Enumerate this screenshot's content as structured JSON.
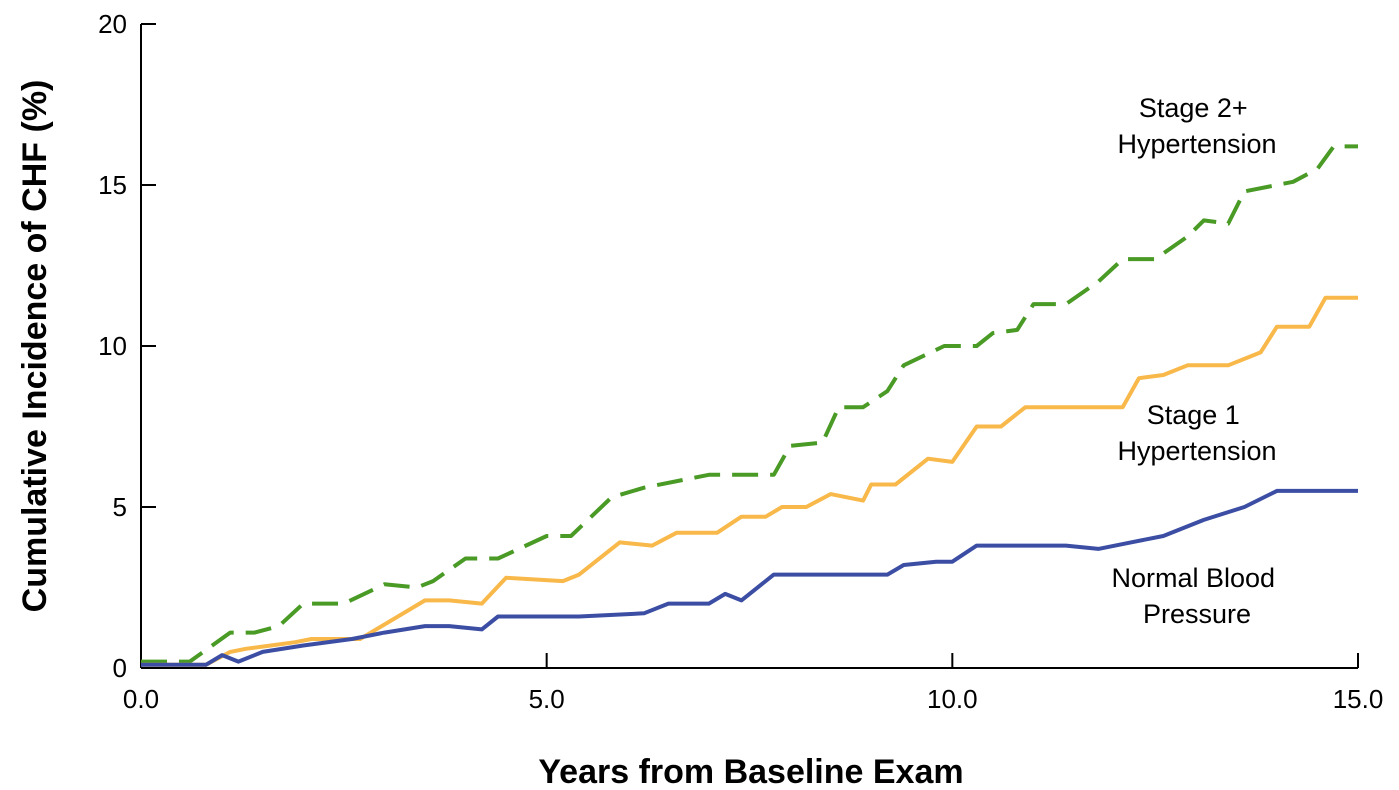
{
  "chart_data": {
    "type": "line",
    "title": "",
    "xlabel": "Years from Baseline Exam",
    "ylabel": "Cumulative Incidence of CHF (%)",
    "xlim": [
      0,
      15
    ],
    "ylim": [
      0,
      20
    ],
    "x_ticks": [
      0,
      5,
      10,
      15
    ],
    "x_tick_labels": [
      "0.0",
      "5.0",
      "10.0",
      "15.0"
    ],
    "y_ticks": [
      0,
      5,
      10,
      15,
      20
    ],
    "y_tick_labels": [
      "0",
      "5",
      "10",
      "15",
      "20"
    ],
    "grid": false,
    "legend": "inline labels at right",
    "series": [
      {
        "name": "Stage 2+ Hypertension",
        "label_lines": [
          "Stage 2+",
          "Hypertension"
        ],
        "color": "#4a9a26",
        "dash": "dashed",
        "points": [
          [
            0,
            0.2
          ],
          [
            0.6,
            0.2
          ],
          [
            1.1,
            1.1
          ],
          [
            1.4,
            1.1
          ],
          [
            1.7,
            1.3
          ],
          [
            2.0,
            2.0
          ],
          [
            2.5,
            2.0
          ],
          [
            3.0,
            2.6
          ],
          [
            3.4,
            2.5
          ],
          [
            3.6,
            2.7
          ],
          [
            4.0,
            3.4
          ],
          [
            4.4,
            3.4
          ],
          [
            5.0,
            4.1
          ],
          [
            5.3,
            4.1
          ],
          [
            5.8,
            5.3
          ],
          [
            6.2,
            5.6
          ],
          [
            7.0,
            6.0
          ],
          [
            7.4,
            6.0
          ],
          [
            7.8,
            6.0
          ],
          [
            8.0,
            6.9
          ],
          [
            8.4,
            7.0
          ],
          [
            8.6,
            8.1
          ],
          [
            8.9,
            8.1
          ],
          [
            9.2,
            8.6
          ],
          [
            9.4,
            9.4
          ],
          [
            9.9,
            10.0
          ],
          [
            10.3,
            10.0
          ],
          [
            10.5,
            10.4
          ],
          [
            10.8,
            10.5
          ],
          [
            11.0,
            11.3
          ],
          [
            11.4,
            11.3
          ],
          [
            11.8,
            12.0
          ],
          [
            12.1,
            12.7
          ],
          [
            12.5,
            12.7
          ],
          [
            12.9,
            13.4
          ],
          [
            13.1,
            13.9
          ],
          [
            13.4,
            13.8
          ],
          [
            13.6,
            14.8
          ],
          [
            14.2,
            15.1
          ],
          [
            14.5,
            15.5
          ],
          [
            14.7,
            16.2
          ],
          [
            15.0,
            16.2
          ]
        ]
      },
      {
        "name": "Stage 1 Hypertension",
        "label_lines": [
          "Stage 1",
          "Hypertension"
        ],
        "color": "#f8b84a",
        "dash": "solid",
        "points": [
          [
            0,
            0.1
          ],
          [
            0.8,
            0.1
          ],
          [
            1.1,
            0.5
          ],
          [
            1.3,
            0.6
          ],
          [
            1.6,
            0.7
          ],
          [
            1.9,
            0.8
          ],
          [
            2.1,
            0.9
          ],
          [
            2.7,
            0.9
          ],
          [
            3.5,
            2.1
          ],
          [
            3.8,
            2.1
          ],
          [
            4.2,
            2.0
          ],
          [
            4.5,
            2.8
          ],
          [
            5.2,
            2.7
          ],
          [
            5.4,
            2.9
          ],
          [
            5.9,
            3.9
          ],
          [
            6.3,
            3.8
          ],
          [
            6.6,
            4.2
          ],
          [
            7.1,
            4.2
          ],
          [
            7.4,
            4.7
          ],
          [
            7.7,
            4.7
          ],
          [
            7.9,
            5.0
          ],
          [
            8.2,
            5.0
          ],
          [
            8.5,
            5.4
          ],
          [
            8.9,
            5.2
          ],
          [
            9.0,
            5.7
          ],
          [
            9.3,
            5.7
          ],
          [
            9.7,
            6.5
          ],
          [
            10.0,
            6.4
          ],
          [
            10.3,
            7.5
          ],
          [
            10.6,
            7.5
          ],
          [
            10.9,
            8.1
          ],
          [
            11.2,
            8.1
          ],
          [
            11.7,
            8.1
          ],
          [
            12.1,
            8.1
          ],
          [
            12.3,
            9.0
          ],
          [
            12.6,
            9.1
          ],
          [
            12.9,
            9.4
          ],
          [
            13.2,
            9.4
          ],
          [
            13.4,
            9.4
          ],
          [
            13.8,
            9.8
          ],
          [
            14.0,
            10.6
          ],
          [
            14.4,
            10.6
          ],
          [
            14.6,
            11.5
          ],
          [
            15.0,
            11.5
          ]
        ]
      },
      {
        "name": "Normal Blood Pressure",
        "label_lines": [
          "Normal Blood",
          "Pressure"
        ],
        "color": "#3c4ea4",
        "dash": "solid",
        "points": [
          [
            0,
            0.1
          ],
          [
            0.8,
            0.1
          ],
          [
            1.0,
            0.4
          ],
          [
            1.2,
            0.2
          ],
          [
            1.5,
            0.5
          ],
          [
            2.0,
            0.7
          ],
          [
            2.6,
            0.9
          ],
          [
            3.0,
            1.1
          ],
          [
            3.5,
            1.3
          ],
          [
            3.8,
            1.3
          ],
          [
            4.2,
            1.2
          ],
          [
            4.4,
            1.6
          ],
          [
            4.8,
            1.6
          ],
          [
            5.4,
            1.6
          ],
          [
            6.2,
            1.7
          ],
          [
            6.5,
            2.0
          ],
          [
            7.0,
            2.0
          ],
          [
            7.2,
            2.3
          ],
          [
            7.4,
            2.1
          ],
          [
            7.8,
            2.9
          ],
          [
            8.2,
            2.9
          ],
          [
            8.7,
            2.9
          ],
          [
            9.2,
            2.9
          ],
          [
            9.4,
            3.2
          ],
          [
            9.8,
            3.3
          ],
          [
            10.0,
            3.3
          ],
          [
            10.3,
            3.8
          ],
          [
            10.8,
            3.8
          ],
          [
            11.4,
            3.8
          ],
          [
            11.8,
            3.7
          ],
          [
            12.2,
            3.9
          ],
          [
            12.6,
            4.1
          ],
          [
            13.1,
            4.6
          ],
          [
            13.6,
            5.0
          ],
          [
            14.0,
            5.5
          ],
          [
            14.5,
            5.5
          ],
          [
            15.0,
            5.5
          ]
        ]
      }
    ]
  }
}
